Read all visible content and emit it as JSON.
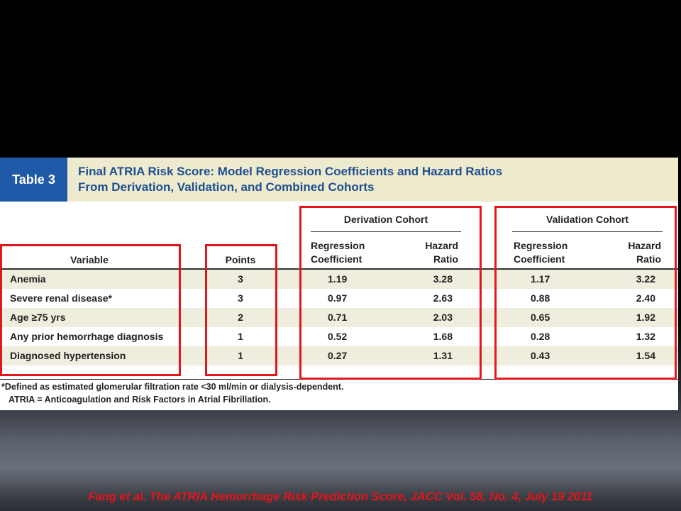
{
  "table": {
    "label": "Table 3",
    "title_line1": "Final ATRIA Risk Score: Model Regression Coefficients and Hazard Ratios",
    "title_line2": "From Derivation, Validation, and Combined Cohorts",
    "groups": {
      "derivation": "Derivation Cohort",
      "validation": "Validation Cohort"
    },
    "columns": {
      "variable": "Variable",
      "points": "Points",
      "coef_line1": "Regression",
      "coef_line2": "Coefficient",
      "hr_line1": "Hazard",
      "hr_line2": "Ratio"
    },
    "rows": [
      {
        "variable": "Anemia",
        "points": "3",
        "der_coef": "1.19",
        "der_hr": "3.28",
        "val_coef": "1.17",
        "val_hr": "3.22"
      },
      {
        "variable": "Severe renal disease*",
        "points": "3",
        "der_coef": "0.97",
        "der_hr": "2.63",
        "val_coef": "0.88",
        "val_hr": "2.40"
      },
      {
        "variable": "Age ≥75 yrs",
        "points": "2",
        "der_coef": "0.71",
        "der_hr": "2.03",
        "val_coef": "0.65",
        "val_hr": "1.92"
      },
      {
        "variable": "Any prior hemorrhage diagnosis",
        "points": "1",
        "der_coef": "0.52",
        "der_hr": "1.68",
        "val_coef": "0.28",
        "val_hr": "1.32"
      },
      {
        "variable": "Diagnosed hypertension",
        "points": "1",
        "der_coef": "0.27",
        "der_hr": "1.31",
        "val_coef": "0.43",
        "val_hr": "1.54"
      }
    ],
    "footnote1": "*Defined as estimated glomerular filtration rate <30 ml/min or dialysis-dependent.",
    "footnote2": "ATRIA = Anticoagulation and Risk Factors in Atrial Fibrillation."
  },
  "citation": "Fang et al. The ATRIA Hemorrhage Risk Prediction Score, JACC Vol. 58, No. 4, July 19 2011",
  "colors": {
    "highlight": "#e3161b",
    "table_label_bg": "#1e5aa8",
    "title_text": "#1d4f91",
    "header_bg": "#eeeacd",
    "row_shade": "#efeddd"
  }
}
